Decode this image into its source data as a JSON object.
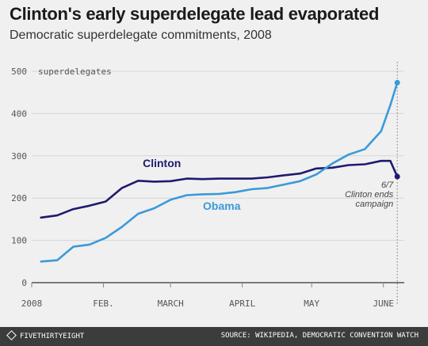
{
  "title": "Clinton's early superdelegate lead evaporated",
  "subtitle": "Democratic superdelegate commitments, 2008",
  "footer": {
    "brand": "FIVETHIRTYEIGHT",
    "brand_icon": "fivethirtyeight-logo-icon",
    "source": "SOURCE: WIKIPEDIA, DEMOCRATIC CONVENTION WATCH"
  },
  "colors": {
    "background": "#f0f0f0",
    "clinton": "#1f1a6e",
    "obama": "#3a9ad9",
    "grid": "#d6d6d6",
    "axis": "#333333",
    "footer": "#3c3c3c"
  },
  "chart_data": {
    "type": "line",
    "title": "Clinton's early superdelegate lead evaporated",
    "subtitle": "Democratic superdelegate commitments, 2008",
    "ylabel": "superdelegates",
    "ylim": [
      0,
      500
    ],
    "yticks": [
      0,
      100,
      200,
      300,
      400,
      500
    ],
    "xlim": [
      "2008-01-01",
      "2008-06-10"
    ],
    "xticks": [
      {
        "date": "2008-01-01",
        "label": "2008"
      },
      {
        "date": "2008-02-01",
        "label": "FEB."
      },
      {
        "date": "2008-03-01",
        "label": "MARCH"
      },
      {
        "date": "2008-04-01",
        "label": "APRIL"
      },
      {
        "date": "2008-05-01",
        "label": "MAY"
      },
      {
        "date": "2008-06-01",
        "label": "JUNE"
      }
    ],
    "grid": true,
    "series": [
      {
        "name": "Clinton",
        "color": "#1f1a6e",
        "x": [
          "2008-01-05",
          "2008-01-12",
          "2008-01-19",
          "2008-01-26",
          "2008-02-02",
          "2008-02-09",
          "2008-02-16",
          "2008-02-23",
          "2008-03-01",
          "2008-03-08",
          "2008-03-15",
          "2008-03-22",
          "2008-03-29",
          "2008-04-05",
          "2008-04-12",
          "2008-04-19",
          "2008-04-26",
          "2008-05-03",
          "2008-05-10",
          "2008-05-17",
          "2008-05-24",
          "2008-05-31",
          "2008-06-04",
          "2008-06-07"
        ],
        "values": [
          154,
          159,
          174,
          182,
          192,
          224,
          241,
          239,
          240,
          246,
          245,
          246,
          246,
          246,
          249,
          254,
          258,
          270,
          272,
          278,
          280,
          288,
          288,
          251
        ]
      },
      {
        "name": "Obama",
        "color": "#3a9ad9",
        "x": [
          "2008-01-05",
          "2008-01-12",
          "2008-01-19",
          "2008-01-26",
          "2008-02-02",
          "2008-02-09",
          "2008-02-16",
          "2008-02-23",
          "2008-03-01",
          "2008-03-08",
          "2008-03-15",
          "2008-03-22",
          "2008-03-29",
          "2008-04-05",
          "2008-04-12",
          "2008-04-19",
          "2008-04-26",
          "2008-05-03",
          "2008-05-10",
          "2008-05-17",
          "2008-05-24",
          "2008-05-31",
          "2008-06-04",
          "2008-06-07"
        ],
        "values": [
          50,
          53,
          85,
          90,
          106,
          132,
          163,
          176,
          196,
          207,
          209,
          210,
          214,
          221,
          224,
          232,
          240,
          256,
          282,
          303,
          316,
          358,
          420,
          473
        ]
      }
    ],
    "annotations": [
      {
        "date": "2008-06-07",
        "line1": "6/7",
        "line2": "Clinton ends",
        "line3": "campaign"
      }
    ]
  }
}
